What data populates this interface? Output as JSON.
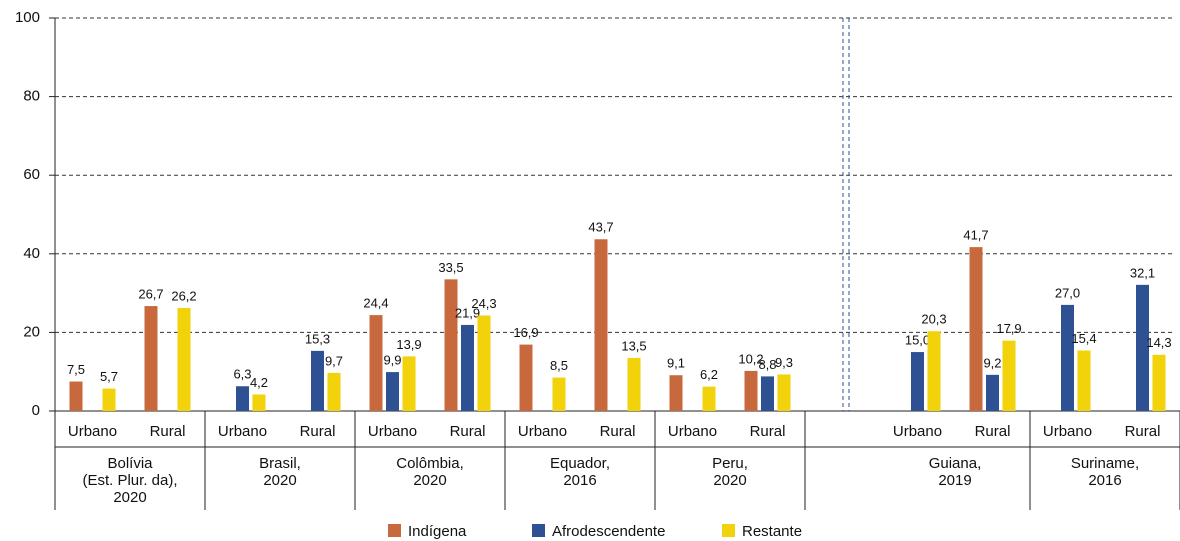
{
  "chart_data": {
    "type": "bar",
    "groups": [
      {
        "label": [
          "Bolívia",
          "(Est. Plur. da),",
          "2020"
        ],
        "categories": [
          "Urbano",
          "Rural"
        ]
      },
      {
        "label": [
          "Brasil,",
          "2020"
        ],
        "categories": [
          "Urbano",
          "Rural"
        ]
      },
      {
        "label": [
          "Colômbia,",
          "2020"
        ],
        "categories": [
          "Urbano",
          "Rural"
        ]
      },
      {
        "label": [
          "Equador,",
          "2016"
        ],
        "categories": [
          "Urbano",
          "Rural"
        ]
      },
      {
        "label": [
          "Peru,",
          "2020"
        ],
        "categories": [
          "Urbano",
          "Rural"
        ]
      },
      {
        "label": [
          "Guiana,",
          "2019"
        ],
        "categories": [
          "Urbano",
          "Rural"
        ]
      },
      {
        "label": [
          "Suriname,",
          "2016"
        ],
        "categories": [
          "Urbano",
          "Rural"
        ]
      }
    ],
    "separator_after": 4,
    "series": [
      {
        "name": "Indígena",
        "color": "#c8683d",
        "values": [
          7.5,
          26.7,
          null,
          null,
          24.4,
          33.5,
          16.9,
          43.7,
          9.1,
          10.2,
          null,
          41.7,
          null,
          null
        ],
        "value_labels": [
          "7,5",
          "26,7",
          null,
          null,
          "24,4",
          "33,5",
          "16,9",
          "43,7",
          "9,1",
          "10,2",
          null,
          "41,7",
          null,
          null
        ]
      },
      {
        "name": "Afrodescendente",
        "color": "#2e5193",
        "values": [
          null,
          null,
          6.3,
          15.3,
          9.9,
          21.9,
          null,
          null,
          null,
          8.8,
          15.0,
          9.2,
          27.0,
          32.1
        ],
        "value_labels": [
          null,
          null,
          "6,3",
          "15,3",
          "9,9",
          "21,9",
          null,
          null,
          null,
          "8,8",
          "15,0",
          "9,2",
          "27,0",
          "32,1"
        ]
      },
      {
        "name": "Restante",
        "color": "#f2d20a",
        "values": [
          5.7,
          26.2,
          4.2,
          9.7,
          13.9,
          24.3,
          8.5,
          13.5,
          6.2,
          9.3,
          20.3,
          17.9,
          15.4,
          14.3
        ],
        "value_labels": [
          "5,7",
          "26,2",
          "4,2",
          "9,7",
          "13,9",
          "24,3",
          "8,5",
          "13,5",
          "6,2",
          "9,3",
          "20,3",
          "17,9",
          "15,4",
          "14,3"
        ]
      }
    ],
    "ylim": [
      0,
      100
    ],
    "yticks": [
      0,
      20,
      40,
      60,
      80,
      100
    ],
    "grid": true,
    "legend": "bottom"
  }
}
